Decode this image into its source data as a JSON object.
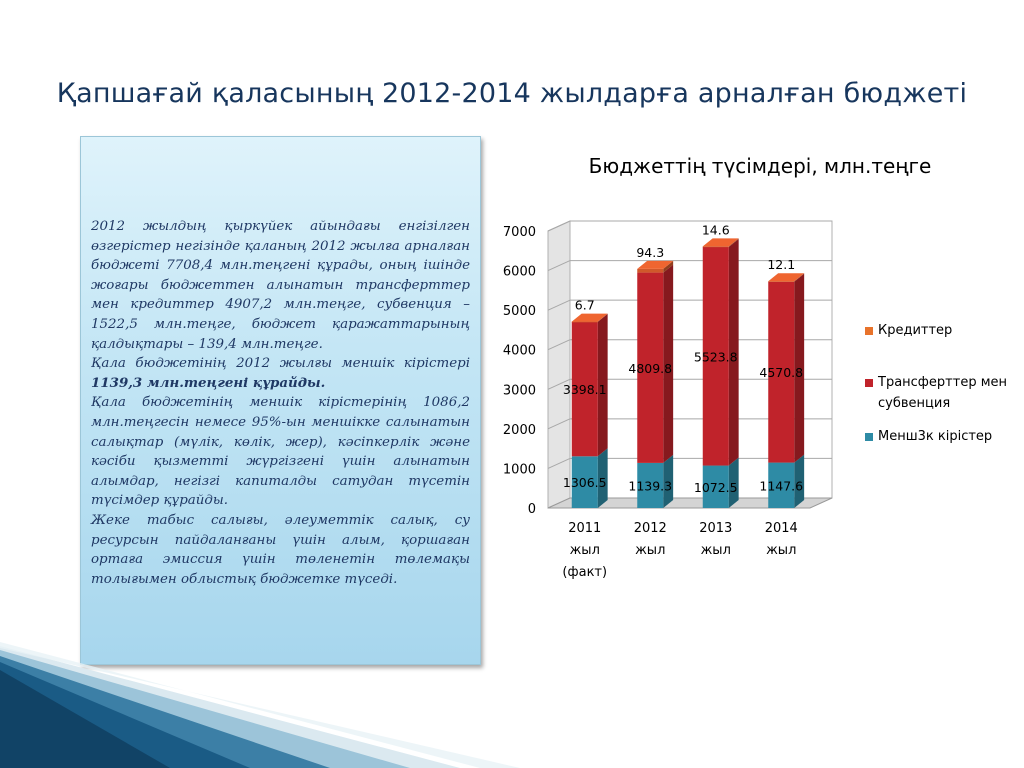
{
  "slide": {
    "title": "Қапшағай қаласының 2012-2014 жылдарға арналған бюджеті"
  },
  "text_panel": {
    "p1": "2012 жылдың қыркүйек айындағы енгізілген өзгерістер негізінде қаланың 2012 жылға арналған бюджеті 7708,4 млн.теңгені құрады, оның ішінде жоғары бюджеттен алынатын трансферттер мен кредиттер 4907,2 млн.теңге, субвенция – 1522,5 млн.теңге, бюджет қаражаттарының қалдықтары – 139,4 млн.теңге.",
    "p2_plain": "Қала бюджетінің 2012 жылғы меншік кірістері ",
    "p2_bold": "1139,3 млн.теңгені құрайды.",
    "p3": "Қала бюджетінің меншік кірістерінің 1086,2 млн.теңгесін немесе 95%-ын меншікке салынатын салықтар (мүлік, көлік, жер), кәсіпкерлік және кәсіби қызметті жүргізгені үшін алынатын алымдар, негізгі капиталды сатудан түсетін түсімдер құрайды.",
    "p4": "Жеке табыс салығы, әлеуметтік салық, су ресурсын пайдаланғаны үшін алым, қоршаған ортаға эмиссия үшін төленетін төлемақы толығымен облыстық бюджетке түседі."
  },
  "chart_data": {
    "type": "bar",
    "stacked": true,
    "three_d": true,
    "title": "Бюджеттің түсімдері, млн.теңге",
    "categories": [
      [
        "2011",
        "жыл",
        "(факт)"
      ],
      [
        "2012",
        "жыл"
      ],
      [
        "2013",
        "жыл"
      ],
      [
        "2014",
        "жыл"
      ]
    ],
    "series": [
      {
        "name": "Менш3к кірістер",
        "color": "#2e8ba5",
        "values": [
          1306.5,
          1139.3,
          1072.5,
          1147.6
        ],
        "labels": [
          "1306.5",
          "1139.3",
          "1072.5",
          "1147.6"
        ]
      },
      {
        "name": "Трансферттер мен субвенция",
        "color": "#c0232b",
        "values": [
          3398.1,
          4809.8,
          5523.8,
          4570.8
        ],
        "labels": [
          "3398.1",
          "4809.8",
          "5523.8",
          "4570.8"
        ]
      },
      {
        "name": "Кредиттер",
        "color": "#d0582a",
        "values": [
          6.7,
          94.3,
          14.6,
          12.1
        ],
        "labels": [
          "6.7",
          "94.3",
          "14.6",
          "12.1"
        ]
      }
    ],
    "legend_order": [
      {
        "name": "Кредиттер",
        "color": "#e8732b"
      },
      {
        "name": "Трансферттер мен субвенция",
        "color": "#c0232b"
      },
      {
        "name": "Менш3к кірістер",
        "color": "#2e8ba5"
      }
    ],
    "ylim": [
      0,
      7000
    ],
    "yticks": [
      0,
      1000,
      2000,
      3000,
      4000,
      5000,
      6000,
      7000
    ],
    "grid": true,
    "legend_position": "right"
  }
}
